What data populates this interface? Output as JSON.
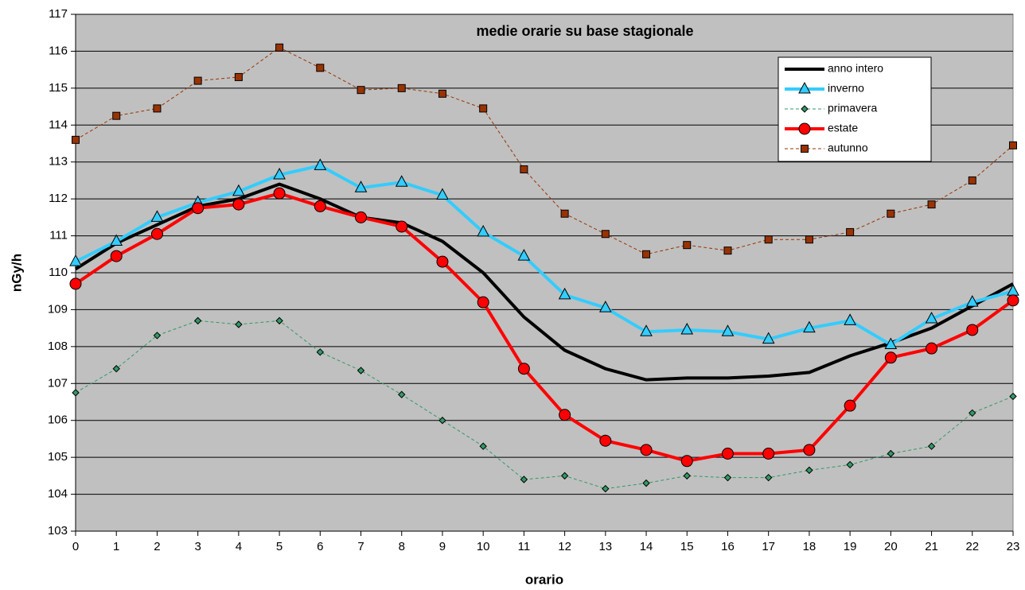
{
  "chart_data": {
    "type": "line",
    "title": "medie orarie su base stagionale",
    "x_label": "orario",
    "y_label": "nGy/h",
    "x": [
      0,
      1,
      2,
      3,
      4,
      5,
      6,
      7,
      8,
      9,
      10,
      11,
      12,
      13,
      14,
      15,
      16,
      17,
      18,
      19,
      20,
      21,
      22,
      23
    ],
    "xlim": [
      0,
      23
    ],
    "xticks": [
      0,
      1,
      2,
      3,
      4,
      5,
      6,
      7,
      8,
      9,
      10,
      11,
      12,
      13,
      14,
      15,
      16,
      17,
      18,
      19,
      20,
      21,
      22,
      23
    ],
    "ylim": [
      103,
      117
    ],
    "yticks": [
      103,
      104,
      105,
      106,
      107,
      108,
      109,
      110,
      111,
      112,
      113,
      114,
      115,
      116,
      117
    ],
    "grid": true,
    "legend": "upper right",
    "series": [
      {
        "name": "anno intero",
        "color": "#000000",
        "marker": "none",
        "width": 4,
        "dash": false,
        "values": [
          110.1,
          110.8,
          111.3,
          111.8,
          112.0,
          112.4,
          112.0,
          111.5,
          111.35,
          110.85,
          110.0,
          108.8,
          107.9,
          107.4,
          107.1,
          107.15,
          107.15,
          107.2,
          107.3,
          107.75,
          108.1,
          108.5,
          109.1,
          109.7
        ]
      },
      {
        "name": "inverno",
        "color": "#33ccff",
        "marker": "triangle",
        "width": 4,
        "dash": false,
        "values": [
          110.3,
          110.85,
          111.5,
          111.9,
          112.2,
          112.65,
          112.9,
          112.3,
          112.45,
          112.1,
          111.1,
          110.45,
          109.4,
          109.05,
          108.4,
          108.45,
          108.4,
          108.2,
          108.5,
          108.7,
          108.05,
          108.75,
          109.2,
          109.5
        ]
      },
      {
        "name": "primavera",
        "color": "#339966",
        "marker": "diamond",
        "width": 1,
        "dash": true,
        "values": [
          106.75,
          107.4,
          108.3,
          108.7,
          108.6,
          108.7,
          107.85,
          107.35,
          106.7,
          106.0,
          105.3,
          104.4,
          104.5,
          104.15,
          104.3,
          104.5,
          104.45,
          104.45,
          104.65,
          104.8,
          105.1,
          105.3,
          106.2,
          106.65
        ]
      },
      {
        "name": "estate",
        "color": "#ff0000",
        "marker": "circle",
        "width": 4,
        "dash": false,
        "values": [
          109.7,
          110.45,
          111.05,
          111.75,
          111.85,
          112.15,
          111.8,
          111.5,
          111.25,
          110.3,
          109.2,
          107.4,
          106.15,
          105.45,
          105.2,
          104.9,
          105.1,
          105.1,
          105.2,
          106.4,
          107.7,
          107.95,
          108.45,
          109.25
        ]
      },
      {
        "name": "autunno",
        "color": "#993300",
        "marker": "square",
        "width": 1,
        "dash": true,
        "values": [
          113.6,
          114.25,
          114.45,
          115.2,
          115.3,
          116.1,
          115.55,
          114.95,
          115.0,
          114.85,
          114.45,
          112.8,
          111.6,
          111.05,
          110.5,
          110.75,
          110.6,
          110.9,
          110.9,
          111.1,
          111.6,
          111.85,
          112.5,
          113.45
        ]
      }
    ]
  }
}
